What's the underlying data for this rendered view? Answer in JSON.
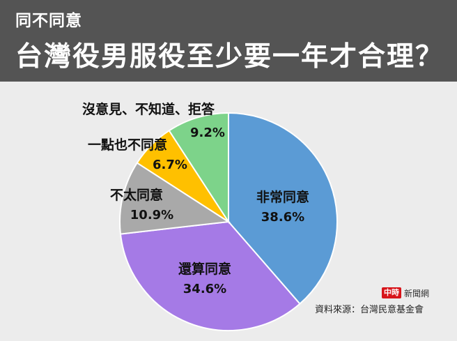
{
  "header": {
    "kicker": "同不同意",
    "title": "台灣役男服役至少要一年才合理？"
  },
  "chart_data": {
    "type": "pie",
    "title": "台灣役男服役至少要一年才合理？",
    "slices": [
      {
        "label": "非常同意",
        "value": 38.6,
        "value_label": "38.6%",
        "color": "#5b9bd5"
      },
      {
        "label": "還算同意",
        "value": 34.6,
        "value_label": "34.6%",
        "color": "#a57ae6"
      },
      {
        "label": "不太同意",
        "value": 10.9,
        "value_label": "10.9%",
        "color": "#a9a9a9"
      },
      {
        "label": "一點也不同意",
        "value": 6.7,
        "value_label": "6.7%",
        "color": "#ffc000"
      },
      {
        "label": "沒意見、不知道、拒答",
        "value": 9.2,
        "value_label": "9.2%",
        "color": "#7dd38a"
      }
    ],
    "start_angle_deg": 0,
    "direction": "clockwise"
  },
  "footer": {
    "brand_mark": "中時",
    "brand_name": "新聞網",
    "source": "資料來源：台灣民意基金會"
  }
}
